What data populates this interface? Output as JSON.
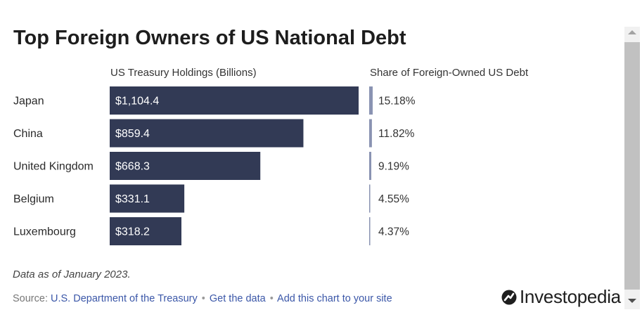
{
  "title": "Top Foreign Owners of US National Debt",
  "columns": {
    "holdings_header": "US Treasury Holdings (Billions)",
    "share_header": "Share of Foreign-Owned US Debt"
  },
  "footnote": "Data as of January 2023.",
  "source": {
    "prefix": "Source:",
    "source_link": "U.S. Department of the Treasury",
    "separator": "•",
    "get_data_link": "Get the data",
    "add_chart_link": "Add this chart to your site"
  },
  "brand": {
    "name": "Investopedia"
  },
  "colors": {
    "bar": "#323a55",
    "share_bar": "#8a93b2",
    "label_text": "#ffffff",
    "link": "#3b57a8"
  },
  "chart_data": {
    "type": "bar",
    "orientation": "horizontal",
    "title": "Top Foreign Owners of US National Debt",
    "categories": [
      "Japan",
      "China",
      "United Kingdom",
      "Belgium",
      "Luxembourg"
    ],
    "series": [
      {
        "name": "US Treasury Holdings (Billions)",
        "values": [
          1104.4,
          859.4,
          668.3,
          331.1,
          318.2
        ],
        "labels": [
          "$1,104.4",
          "$859.4",
          "$668.3",
          "$331.1",
          "$318.2"
        ]
      },
      {
        "name": "Share of Foreign-Owned US Debt",
        "values": [
          15.18,
          11.82,
          9.19,
          4.55,
          4.37
        ],
        "labels": [
          "15.18%",
          "11.82%",
          "9.19%",
          "4.55%",
          "4.37%"
        ]
      }
    ],
    "xlim": [
      0,
      1104.4
    ],
    "grid": false,
    "legend": "none"
  }
}
